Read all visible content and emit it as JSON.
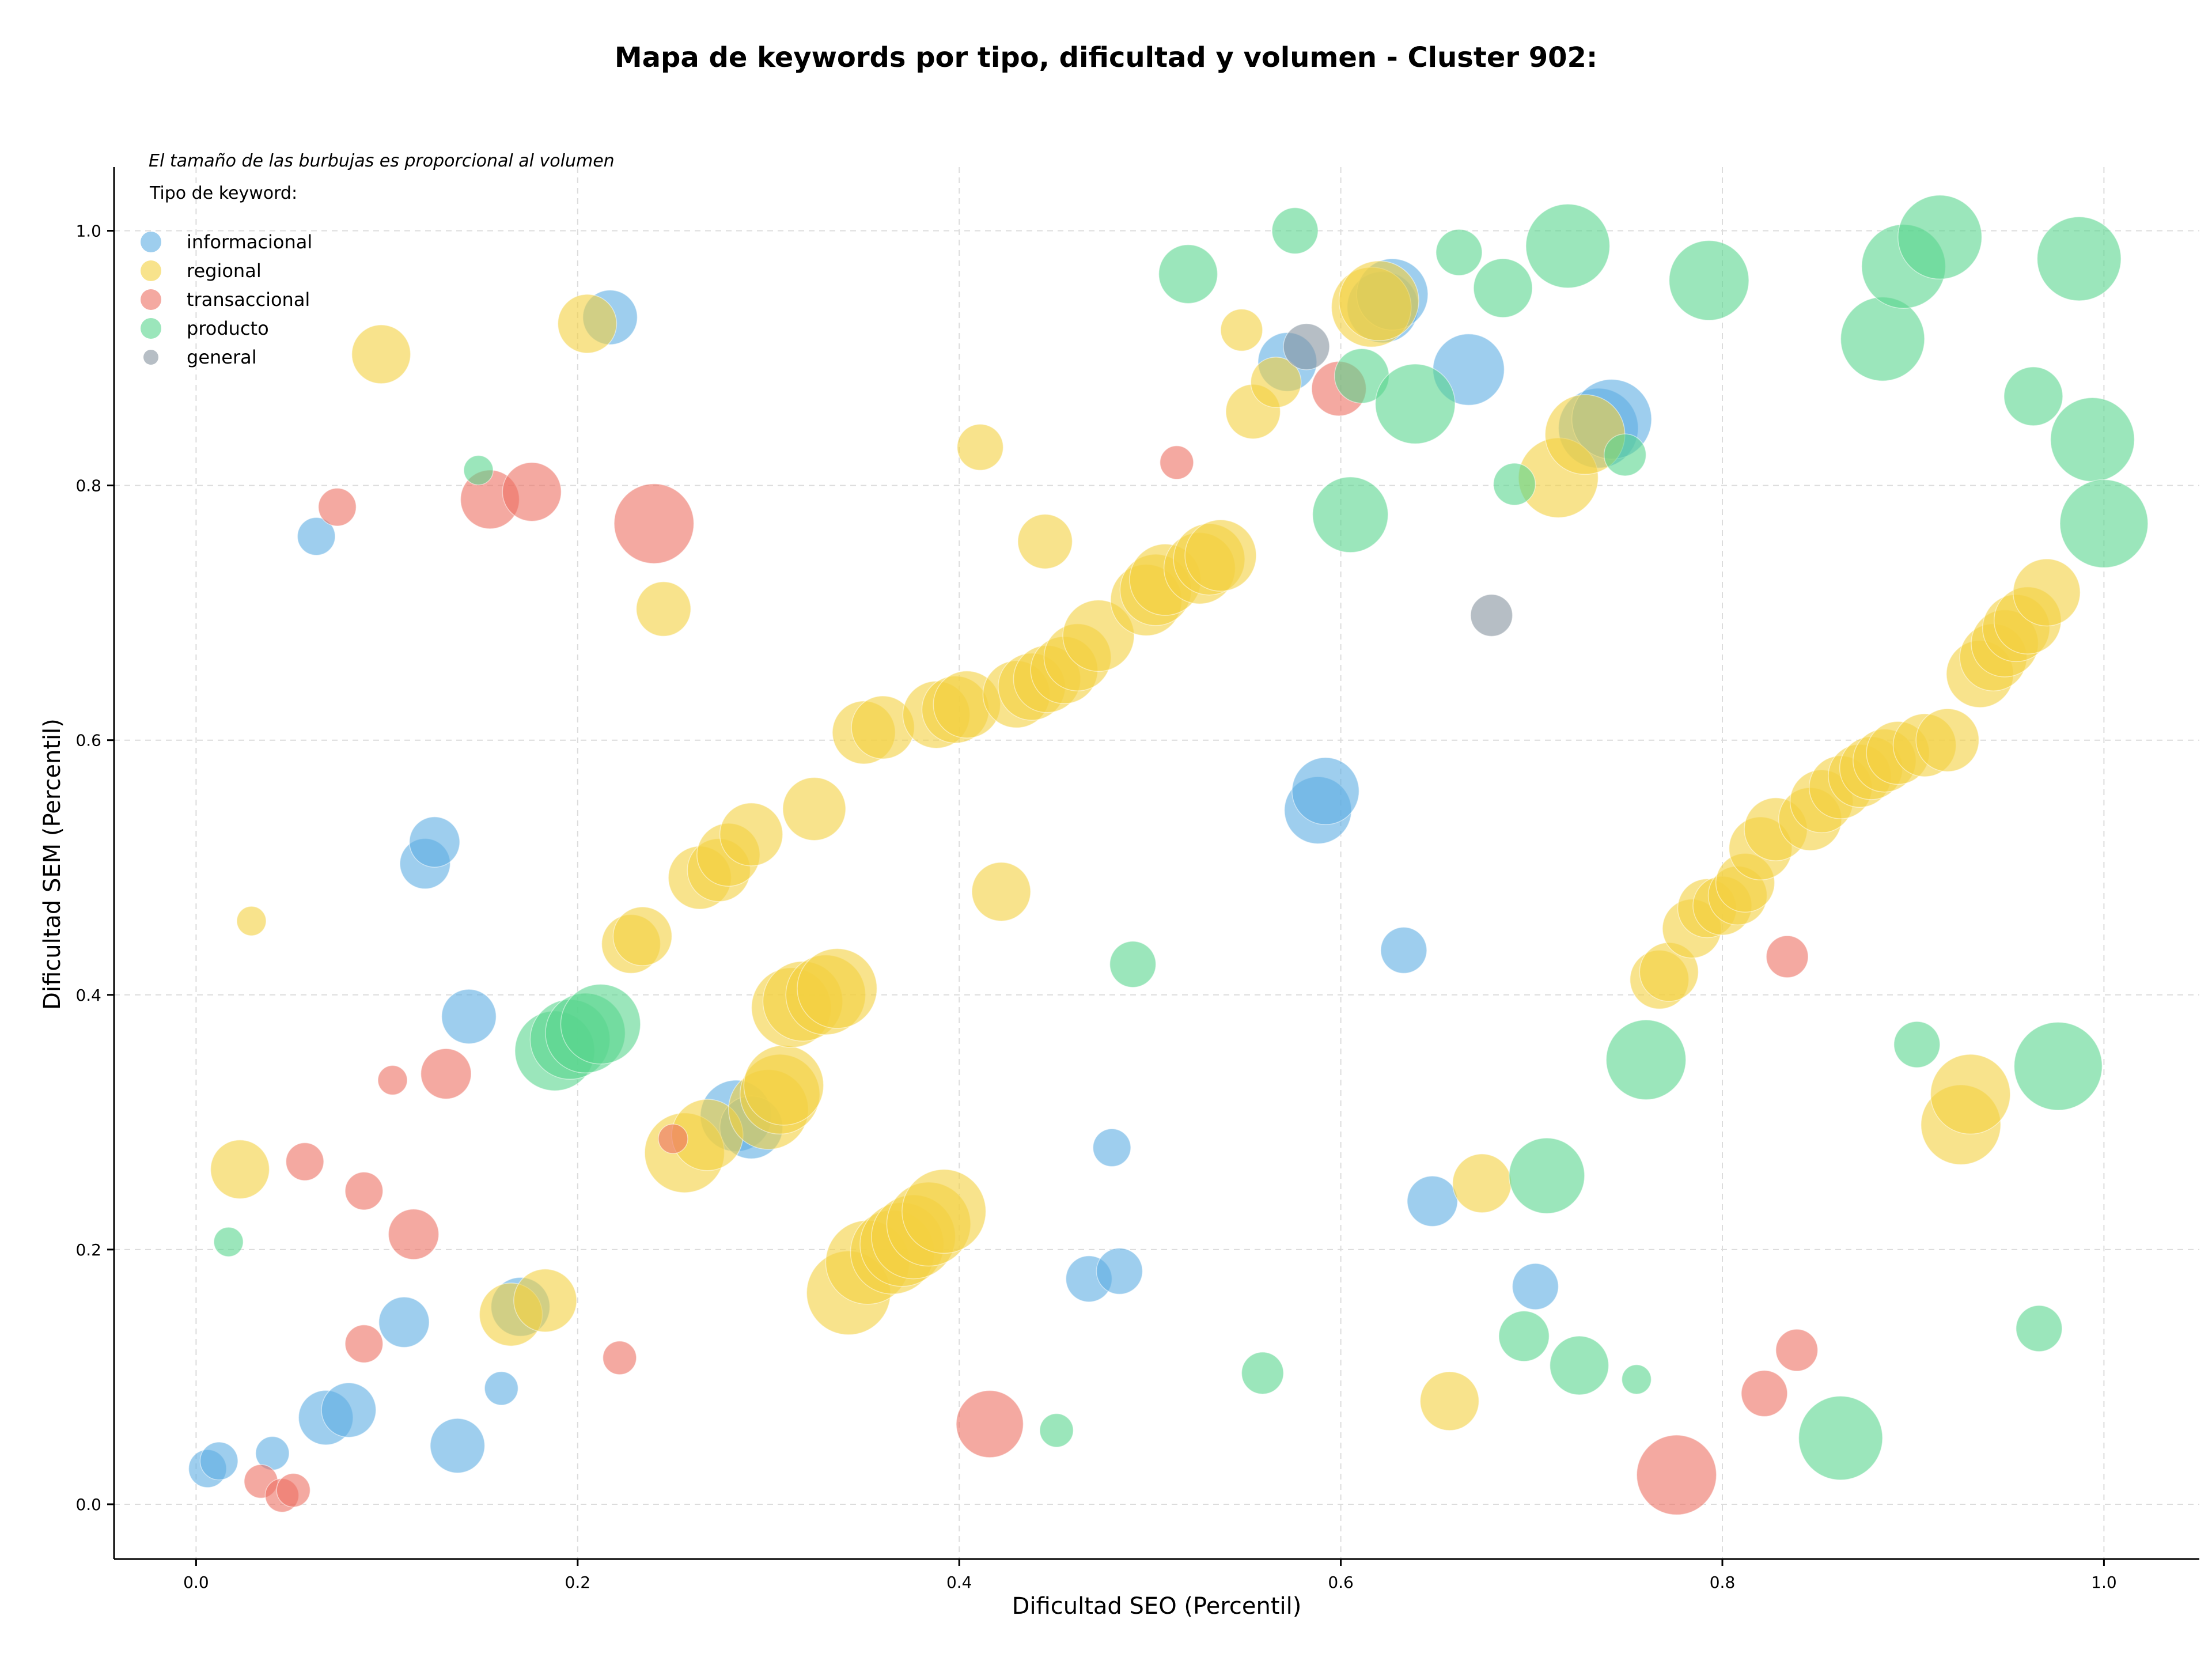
{
  "chart_data": {
    "type": "scatter",
    "title": "Mapa de keywords por tipo, dificultad y volumen - Cluster 902:",
    "xlabel": "Dificultad SEO (Percentil)",
    "ylabel": "Dificultad SEM (Percentil)",
    "xlim": [
      -0.043,
      1.05
    ],
    "ylim": [
      -0.043,
      1.05
    ],
    "x_ticks": [
      "0.0",
      "0.2",
      "0.4",
      "0.6",
      "0.8",
      "1.0"
    ],
    "y_ticks": [
      "0.0",
      "0.2",
      "0.4",
      "0.6",
      "0.8",
      "1.0"
    ],
    "grid": true,
    "legend": {
      "placement": "top-left",
      "note": "El tamaño de las burbujas es proporcional al volumen",
      "title": "Tipo de keyword:"
    },
    "series": [
      {
        "name": "informacional",
        "color": "#5dade2",
        "points": [
          [
            0.006,
            0.028,
            18
          ],
          [
            0.012,
            0.034,
            18
          ],
          [
            0.04,
            0.04,
            16
          ],
          [
            0.068,
            0.068,
            26
          ],
          [
            0.08,
            0.074,
            26
          ],
          [
            0.109,
            0.143,
            24
          ],
          [
            0.137,
            0.046,
            26
          ],
          [
            0.16,
            0.091,
            16
          ],
          [
            0.17,
            0.155,
            28
          ],
          [
            0.063,
            0.76,
            18
          ],
          [
            0.12,
            0.503,
            24
          ],
          [
            0.125,
            0.52,
            24
          ],
          [
            0.143,
            0.383,
            26
          ],
          [
            0.217,
            0.932,
            26
          ],
          [
            0.283,
            0.305,
            34
          ],
          [
            0.291,
            0.296,
            30
          ],
          [
            0.468,
            0.177,
            22
          ],
          [
            0.48,
            0.28,
            18
          ],
          [
            0.484,
            0.183,
            22
          ],
          [
            0.572,
            0.897,
            28
          ],
          [
            0.588,
            0.545,
            32
          ],
          [
            0.592,
            0.56,
            32
          ],
          [
            0.622,
            0.94,
            34
          ],
          [
            0.627,
            0.95,
            34
          ],
          [
            0.633,
            0.435,
            22
          ],
          [
            0.648,
            0.238,
            24
          ],
          [
            0.667,
            0.891,
            34
          ],
          [
            0.702,
            0.171,
            22
          ],
          [
            0.735,
            0.845,
            38
          ],
          [
            0.742,
            0.852,
            38
          ]
        ]
      },
      {
        "name": "regional",
        "color": "#f4d03f",
        "points": [
          [
            0.029,
            0.458,
            14
          ],
          [
            0.023,
            0.263,
            28
          ],
          [
            0.097,
            0.903,
            28
          ],
          [
            0.165,
            0.149,
            30
          ],
          [
            0.183,
            0.16,
            30
          ],
          [
            0.205,
            0.927,
            28
          ],
          [
            0.228,
            0.44,
            28
          ],
          [
            0.234,
            0.446,
            28
          ],
          [
            0.245,
            0.703,
            26
          ],
          [
            0.256,
            0.276,
            38
          ],
          [
            0.264,
            0.492,
            30
          ],
          [
            0.268,
            0.29,
            34
          ],
          [
            0.274,
            0.498,
            30
          ],
          [
            0.279,
            0.51,
            30
          ],
          [
            0.291,
            0.526,
            30
          ],
          [
            0.3,
            0.31,
            38
          ],
          [
            0.306,
            0.322,
            38
          ],
          [
            0.308,
            0.329,
            38
          ],
          [
            0.312,
            0.39,
            38
          ],
          [
            0.318,
            0.395,
            38
          ],
          [
            0.324,
            0.546,
            30
          ],
          [
            0.33,
            0.4,
            38
          ],
          [
            0.336,
            0.405,
            38
          ],
          [
            0.342,
            0.166,
            40
          ],
          [
            0.35,
            0.606,
            30
          ],
          [
            0.352,
            0.19,
            40
          ],
          [
            0.36,
            0.61,
            30
          ],
          [
            0.365,
            0.198,
            40
          ],
          [
            0.37,
            0.204,
            40
          ],
          [
            0.376,
            0.21,
            40
          ],
          [
            0.384,
            0.22,
            40
          ],
          [
            0.388,
            0.62,
            32
          ],
          [
            0.392,
            0.23,
            40
          ],
          [
            0.398,
            0.624,
            32
          ],
          [
            0.404,
            0.628,
            32
          ],
          [
            0.411,
            0.83,
            22
          ],
          [
            0.422,
            0.481,
            28
          ],
          [
            0.43,
            0.636,
            32
          ],
          [
            0.438,
            0.642,
            32
          ],
          [
            0.445,
            0.756,
            26
          ],
          [
            0.446,
            0.648,
            32
          ],
          [
            0.455,
            0.655,
            32
          ],
          [
            0.462,
            0.665,
            32
          ],
          [
            0.473,
            0.682,
            34
          ],
          [
            0.498,
            0.71,
            34
          ],
          [
            0.503,
            0.718,
            34
          ],
          [
            0.508,
            0.726,
            34
          ],
          [
            0.526,
            0.735,
            34
          ],
          [
            0.531,
            0.742,
            34
          ],
          [
            0.537,
            0.745,
            34
          ],
          [
            0.548,
            0.922,
            20
          ],
          [
            0.554,
            0.858,
            26
          ],
          [
            0.566,
            0.881,
            24
          ],
          [
            0.616,
            0.94,
            38
          ],
          [
            0.62,
            0.945,
            38
          ],
          [
            0.657,
            0.081,
            28
          ],
          [
            0.674,
            0.252,
            28
          ],
          [
            0.714,
            0.806,
            38
          ],
          [
            0.728,
            0.84,
            38
          ],
          [
            0.767,
            0.412,
            28
          ],
          [
            0.772,
            0.418,
            28
          ],
          [
            0.784,
            0.452,
            28
          ],
          [
            0.792,
            0.468,
            28
          ],
          [
            0.8,
            0.47,
            28
          ],
          [
            0.808,
            0.478,
            28
          ],
          [
            0.812,
            0.488,
            28
          ],
          [
            0.82,
            0.515,
            30
          ],
          [
            0.828,
            0.53,
            30
          ],
          [
            0.846,
            0.538,
            30
          ],
          [
            0.852,
            0.552,
            30
          ],
          [
            0.862,
            0.563,
            30
          ],
          [
            0.872,
            0.572,
            30
          ],
          [
            0.878,
            0.578,
            30
          ],
          [
            0.885,
            0.584,
            30
          ],
          [
            0.892,
            0.59,
            30
          ],
          [
            0.906,
            0.596,
            30
          ],
          [
            0.918,
            0.6,
            30
          ],
          [
            0.925,
            0.298,
            38
          ],
          [
            0.93,
            0.322,
            38
          ],
          [
            0.935,
            0.652,
            32
          ],
          [
            0.942,
            0.665,
            32
          ],
          [
            0.948,
            0.676,
            32
          ],
          [
            0.954,
            0.688,
            32
          ],
          [
            0.96,
            0.694,
            32
          ],
          [
            0.97,
            0.716,
            32
          ]
        ]
      },
      {
        "name": "transaccional",
        "color": "#ec7063",
        "points": [
          [
            0.034,
            0.018,
            16
          ],
          [
            0.045,
            0.007,
            16
          ],
          [
            0.051,
            0.011,
            16
          ],
          [
            0.057,
            0.269,
            18
          ],
          [
            0.074,
            0.783,
            18
          ],
          [
            0.088,
            0.126,
            18
          ],
          [
            0.088,
            0.246,
            18
          ],
          [
            0.103,
            0.333,
            14
          ],
          [
            0.114,
            0.212,
            24
          ],
          [
            0.131,
            0.338,
            24
          ],
          [
            0.154,
            0.789,
            28
          ],
          [
            0.176,
            0.795,
            28
          ],
          [
            0.222,
            0.115,
            16
          ],
          [
            0.24,
            0.77,
            38
          ],
          [
            0.25,
            0.287,
            14
          ],
          [
            0.416,
            0.063,
            32
          ],
          [
            0.514,
            0.818,
            16
          ],
          [
            0.599,
            0.876,
            26
          ],
          [
            0.776,
            0.023,
            38
          ],
          [
            0.822,
            0.087,
            22
          ],
          [
            0.834,
            0.43,
            20
          ],
          [
            0.839,
            0.121,
            20
          ]
        ]
      },
      {
        "name": "producto",
        "color": "#58d68d",
        "points": [
          [
            0.017,
            0.206,
            14
          ],
          [
            0.148,
            0.812,
            14
          ],
          [
            0.188,
            0.356,
            38
          ],
          [
            0.196,
            0.365,
            38
          ],
          [
            0.204,
            0.37,
            38
          ],
          [
            0.212,
            0.377,
            38
          ],
          [
            0.451,
            0.058,
            16
          ],
          [
            0.491,
            0.424,
            22
          ],
          [
            0.52,
            0.966,
            28
          ],
          [
            0.559,
            0.103,
            20
          ],
          [
            0.576,
            1.0,
            22
          ],
          [
            0.605,
            0.777,
            36
          ],
          [
            0.611,
            0.886,
            26
          ],
          [
            0.639,
            0.864,
            38
          ],
          [
            0.662,
            0.983,
            22
          ],
          [
            0.685,
            0.955,
            28
          ],
          [
            0.691,
            0.801,
            20
          ],
          [
            0.696,
            0.132,
            24
          ],
          [
            0.708,
            0.258,
            36
          ],
          [
            0.719,
            0.988,
            40
          ],
          [
            0.725,
            0.109,
            28
          ],
          [
            0.749,
            0.824,
            20
          ],
          [
            0.755,
            0.098,
            14
          ],
          [
            0.76,
            0.349,
            38
          ],
          [
            0.793,
            0.961,
            38
          ],
          [
            0.862,
            0.052,
            40
          ],
          [
            0.884,
            0.915,
            40
          ],
          [
            0.895,
            0.972,
            40
          ],
          [
            0.902,
            0.361,
            22
          ],
          [
            0.914,
            0.995,
            40
          ],
          [
            0.963,
            0.87,
            28
          ],
          [
            0.966,
            0.138,
            22
          ],
          [
            0.976,
            0.344,
            42
          ],
          [
            0.987,
            0.978,
            40
          ],
          [
            0.994,
            0.836,
            40
          ],
          [
            1.0,
            0.77,
            42
          ]
        ]
      },
      {
        "name": "general",
        "color": "#85929e",
        "points": [
          [
            0.582,
            0.909,
            22
          ],
          [
            0.679,
            0.698,
            20
          ]
        ]
      }
    ]
  }
}
